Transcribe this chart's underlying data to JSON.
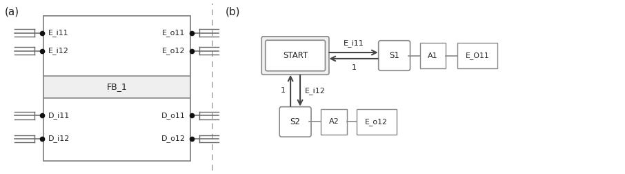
{
  "fig_width": 9.06,
  "fig_height": 2.52,
  "dpi": 100,
  "bg_color": "#ffffff",
  "label_a": "(a)",
  "label_b": "(b)",
  "fb_label": "FB_1",
  "fb_box_color": "#efefef",
  "fb_box_edge": "#888888",
  "state_box_color": "#f0f0f0",
  "state_box_edge": "#888888",
  "event_inputs": [
    "E_i11",
    "E_i12"
  ],
  "event_outputs": [
    "E_o11",
    "E_o12"
  ],
  "data_inputs": [
    "D_i11",
    "D_i12"
  ],
  "data_outputs": [
    "D_o11",
    "D_o12"
  ],
  "arrow_color": "#444444",
  "line_color": "#666666",
  "text_color": "#222222",
  "dot_color": "#111111"
}
